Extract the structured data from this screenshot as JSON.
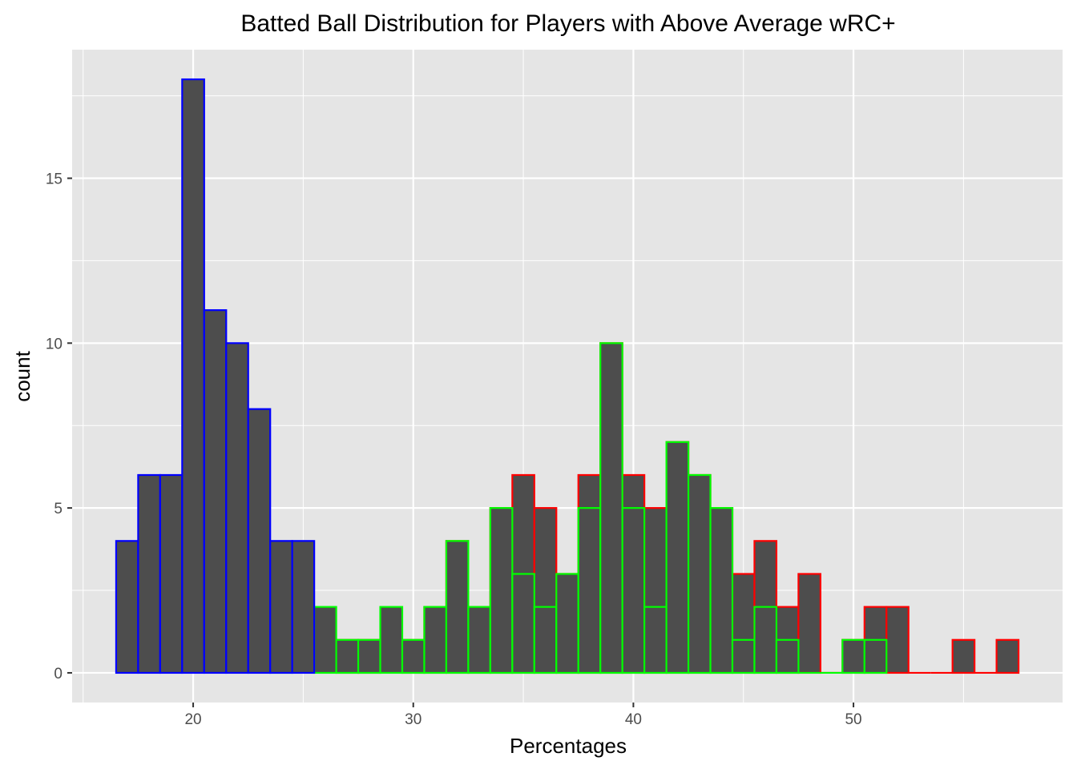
{
  "chart_data": {
    "type": "bar",
    "title": "Batted Ball Distribution for Players with Above Average wRC+",
    "xlabel": "Percentages",
    "ylabel": "count",
    "xlim": [
      14.5,
      59.5
    ],
    "ylim": [
      -0.9,
      18.9
    ],
    "x_ticks": [
      20,
      30,
      40,
      50
    ],
    "y_ticks": [
      0,
      5,
      10,
      15
    ],
    "grid": true,
    "background": "#e5e5e5",
    "bar_fill": "#4d4d4d",
    "bin_width": 1,
    "series": [
      {
        "outline": "#ff0000",
        "bins": [
          {
            "x": 27,
            "count": 1
          },
          {
            "x": 28,
            "count": 1
          },
          {
            "x": 30,
            "count": 1
          },
          {
            "x": 31,
            "count": 2
          },
          {
            "x": 32,
            "count": 4
          },
          {
            "x": 33,
            "count": 2
          },
          {
            "x": 34,
            "count": 5
          },
          {
            "x": 35,
            "count": 6
          },
          {
            "x": 36,
            "count": 5
          },
          {
            "x": 37,
            "count": 3
          },
          {
            "x": 38,
            "count": 6
          },
          {
            "x": 39,
            "count": 10
          },
          {
            "x": 40,
            "count": 6
          },
          {
            "x": 41,
            "count": 5
          },
          {
            "x": 42,
            "count": 7
          },
          {
            "x": 43,
            "count": 6
          },
          {
            "x": 44,
            "count": 5
          },
          {
            "x": 45,
            "count": 3
          },
          {
            "x": 46,
            "count": 4
          },
          {
            "x": 47,
            "count": 2
          },
          {
            "x": 48,
            "count": 3
          },
          {
            "x": 49,
            "count": 0
          },
          {
            "x": 50,
            "count": 1
          },
          {
            "x": 51,
            "count": 2
          },
          {
            "x": 52,
            "count": 2
          },
          {
            "x": 53,
            "count": 0
          },
          {
            "x": 54,
            "count": 0
          },
          {
            "x": 55,
            "count": 1
          },
          {
            "x": 56,
            "count": 0
          },
          {
            "x": 57,
            "count": 1
          }
        ]
      },
      {
        "outline": "#00ff00",
        "bins": [
          {
            "x": 24,
            "count": 2
          },
          {
            "x": 25,
            "count": 0
          },
          {
            "x": 26,
            "count": 2
          },
          {
            "x": 27,
            "count": 1
          },
          {
            "x": 28,
            "count": 1
          },
          {
            "x": 29,
            "count": 2
          },
          {
            "x": 30,
            "count": 1
          },
          {
            "x": 31,
            "count": 2
          },
          {
            "x": 32,
            "count": 4
          },
          {
            "x": 33,
            "count": 2
          },
          {
            "x": 34,
            "count": 5
          },
          {
            "x": 35,
            "count": 3
          },
          {
            "x": 36,
            "count": 2
          },
          {
            "x": 37,
            "count": 3
          },
          {
            "x": 38,
            "count": 5
          },
          {
            "x": 39,
            "count": 10
          },
          {
            "x": 40,
            "count": 5
          },
          {
            "x": 41,
            "count": 2
          },
          {
            "x": 42,
            "count": 7
          },
          {
            "x": 43,
            "count": 6
          },
          {
            "x": 44,
            "count": 5
          },
          {
            "x": 45,
            "count": 1
          },
          {
            "x": 46,
            "count": 2
          },
          {
            "x": 47,
            "count": 1
          },
          {
            "x": 48,
            "count": 0
          },
          {
            "x": 49,
            "count": 0
          },
          {
            "x": 50,
            "count": 1
          },
          {
            "x": 51,
            "count": 1
          }
        ]
      },
      {
        "outline": "#0000ff",
        "bins": [
          {
            "x": 17,
            "count": 4
          },
          {
            "x": 18,
            "count": 6
          },
          {
            "x": 19,
            "count": 6
          },
          {
            "x": 20,
            "count": 18
          },
          {
            "x": 21,
            "count": 11
          },
          {
            "x": 22,
            "count": 10
          },
          {
            "x": 23,
            "count": 8
          },
          {
            "x": 24,
            "count": 4
          },
          {
            "x": 25,
            "count": 4
          }
        ]
      }
    ]
  }
}
